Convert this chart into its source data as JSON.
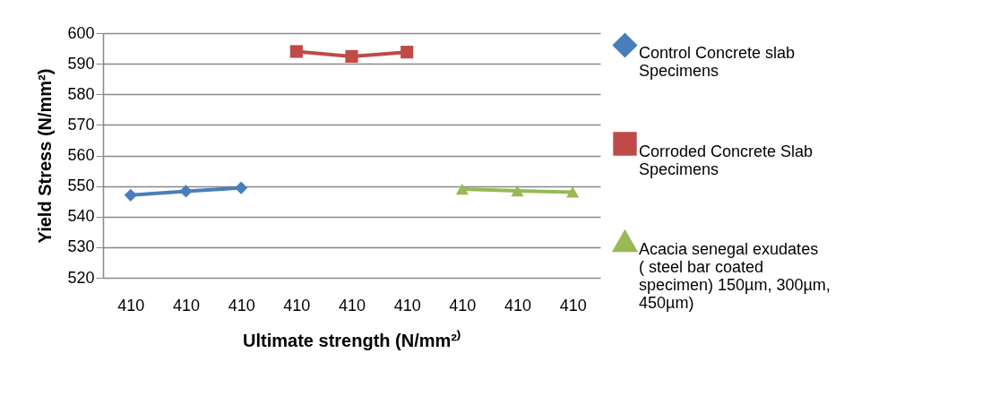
{
  "chart_data": {
    "type": "line",
    "xlabel": "Ultimate strength (N/mm²⁾",
    "ylabel": "Yield Stress (N/mm²)",
    "categories": [
      "410",
      "410",
      "410",
      "410",
      "410",
      "410",
      "410",
      "410",
      "410"
    ],
    "series": [
      {
        "name": "Control  Concrete slab Specimens",
        "color": "#4a7ebb",
        "marker": "diamond",
        "values": [
          547,
          548.3,
          549.4,
          null,
          null,
          null,
          null,
          null,
          null
        ]
      },
      {
        "name": "Corroded  Concrete Slab Specimens",
        "color": "#be4b48",
        "marker": "square",
        "values": [
          null,
          null,
          null,
          594,
          592.4,
          593.8,
          null,
          null,
          null
        ]
      },
      {
        "name": "Acacia senegal  exudates    ( steel bar coated specimen) 150µm, 300µm, 450µm)",
        "color": "#98b954",
        "marker": "triangle",
        "values": [
          null,
          null,
          null,
          null,
          null,
          null,
          549,
          548.4,
          548
        ]
      }
    ],
    "ylim": [
      520,
      600
    ],
    "yticks": [
      520,
      530,
      540,
      550,
      560,
      570,
      580,
      590,
      600
    ],
    "grid": "y",
    "legend": "right"
  }
}
